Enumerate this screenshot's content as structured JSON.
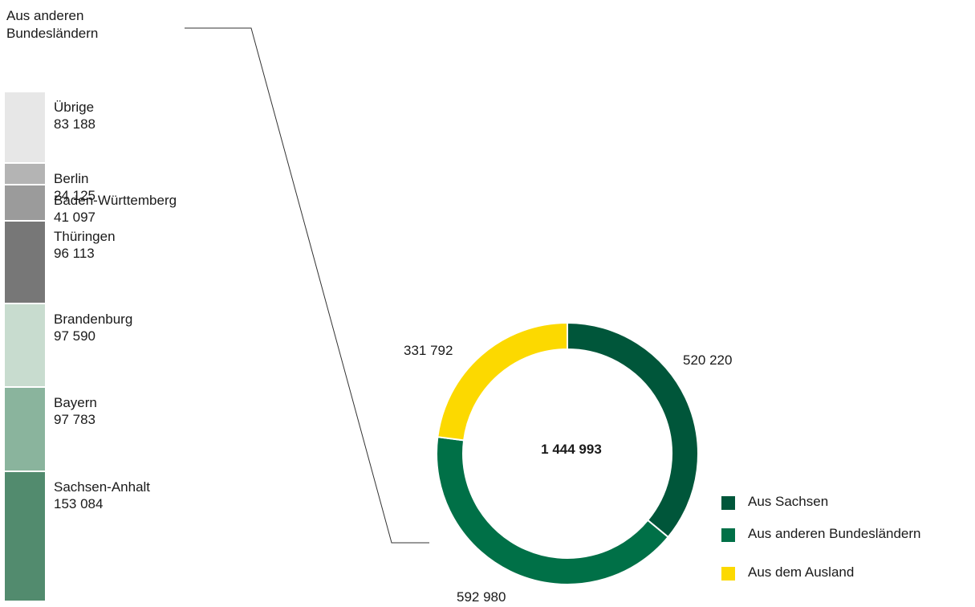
{
  "chart_data": [
    {
      "type": "bar",
      "subtype": "stacked-100",
      "title": "Aus anderen Bundesländern",
      "categories": [
        "Sachsen-Anhalt",
        "Bayern",
        "Brandenburg",
        "Thüringen",
        "Baden-Württemberg",
        "Berlin",
        "Übrige"
      ],
      "values": [
        153084,
        97783,
        97590,
        96113,
        41097,
        24125,
        83188
      ],
      "value_labels": [
        "153 084",
        "97 783",
        "97 590",
        "96 113",
        "41 097",
        "24 125",
        "83 188"
      ],
      "colors": [
        "#528b6e",
        "#8ab49d",
        "#c8dccf",
        "#777777",
        "#9b9b9b",
        "#b4b4b4",
        "#e7e7e7"
      ]
    },
    {
      "type": "pie",
      "subtype": "donut",
      "center_label": "1 444 993",
      "series": [
        {
          "name": "Aus Sachsen",
          "value": 520220,
          "label": "520 220",
          "color": "#00563a"
        },
        {
          "name": "Aus anderen Bundesländern",
          "value": 592980,
          "label": "592 980",
          "color": "#007047"
        },
        {
          "name": "Aus dem Ausland",
          "value": 331792,
          "label": "331 792",
          "color": "#fcd900"
        }
      ],
      "legend_position": "bottom-right"
    }
  ]
}
